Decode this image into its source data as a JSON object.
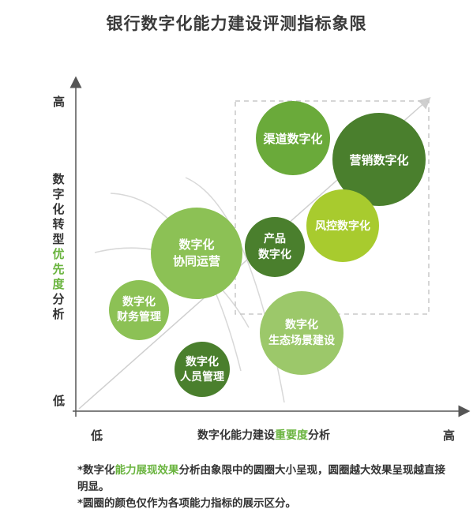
{
  "title": "银行数字化能力建设评测指标象限",
  "y_axis": {
    "label_chars_pre": [
      "数",
      "字",
      "化",
      "转",
      "型"
    ],
    "label_chars_hl": [
      "优",
      "先",
      "度"
    ],
    "label_chars_post": [
      "分",
      "析"
    ],
    "high": "高",
    "low": "低"
  },
  "x_axis": {
    "label_pre": "数字化能力建设",
    "label_hl": "重要度",
    "label_post": "分析",
    "low": "低",
    "high": "高"
  },
  "colors": {
    "dark_green": "#4a7f2d",
    "mid_green": "#6aaa3a",
    "light_green": "#8cc155",
    "yellow_green": "#a8cb2e",
    "pale_green": "#9cc86a",
    "highlight": "#6ab43f"
  },
  "bubbles": [
    {
      "name": "bubble-channel",
      "lines": [
        "渠道数字化"
      ],
      "color": "#6aaa3a"
    },
    {
      "name": "bubble-marketing",
      "lines": [
        "营销数字化"
      ],
      "color": "#4a7f2d"
    },
    {
      "name": "bubble-risk",
      "lines": [
        "风控数字化"
      ],
      "color": "#a8cb2e"
    },
    {
      "name": "bubble-product",
      "lines": [
        "产品",
        "数字化"
      ],
      "color": "#4a7f2d"
    },
    {
      "name": "bubble-collab",
      "lines": [
        "数字化",
        "协同运营"
      ],
      "color": "#8cc155"
    },
    {
      "name": "bubble-finance",
      "lines": [
        "数字化",
        "财务管理"
      ],
      "color": "#8cc155"
    },
    {
      "name": "bubble-ecosystem",
      "lines": [
        "数字化",
        "生态场景建设"
      ],
      "color": "#9cc86a"
    },
    {
      "name": "bubble-hr",
      "lines": [
        "数字化",
        "人员管理"
      ],
      "color": "#4a7f2d"
    }
  ],
  "notes": {
    "note1_pre": "*数字化",
    "note1_hl": "能力展现效果",
    "note1_post": "分析由象限中的圆圈大小呈现，圆圈越大效果呈现越直接明显。",
    "note2": "*圆圈的颜色仅作为各项能力指标的展示区分。"
  }
}
